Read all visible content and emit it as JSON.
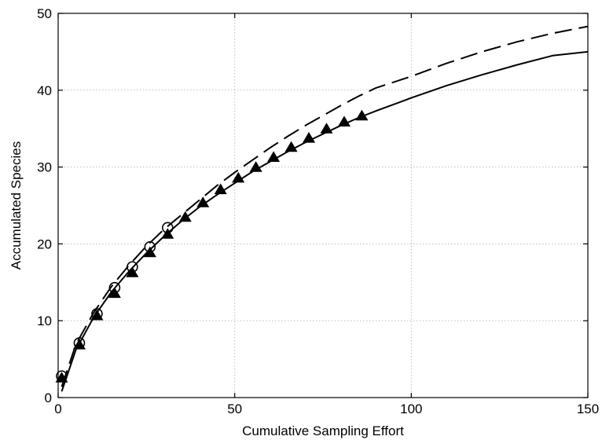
{
  "chart_data": {
    "type": "line",
    "title": "",
    "xlabel": "Cumulative Sampling Effort",
    "ylabel": "Accumulated Species",
    "xlim": [
      0,
      150
    ],
    "ylim": [
      0,
      50
    ],
    "x_ticks": [
      0,
      50,
      100,
      150
    ],
    "y_ticks": [
      0,
      10,
      20,
      30,
      40,
      50
    ],
    "x_tick_labels": [
      "0",
      "50",
      "100",
      "150"
    ],
    "y_tick_labels": [
      "0",
      "10",
      "20",
      "30",
      "40",
      "50"
    ],
    "grid": true,
    "legend": "none",
    "colors": {
      "lines": "#000000",
      "grid": "#bfbfbf",
      "axes": "#000000"
    },
    "series": [
      {
        "style": "solid-line",
        "x": [
          1,
          5,
          10,
          15,
          20,
          25,
          30,
          35,
          40,
          45,
          50,
          55,
          60,
          65,
          70,
          75,
          80,
          85,
          90,
          100,
          110,
          120,
          130,
          140,
          150
        ],
        "y": [
          0.8,
          6.2,
          10.4,
          13.7,
          16.4,
          18.8,
          21.0,
          23.0,
          24.8,
          26.4,
          27.9,
          29.4,
          30.7,
          32.0,
          33.2,
          34.3,
          35.4,
          36.4,
          37.3,
          39.0,
          40.6,
          42.0,
          43.3,
          44.5,
          45.0
        ]
      },
      {
        "style": "dashed-line",
        "x": [
          1,
          5,
          10,
          15,
          20,
          25,
          30,
          35,
          40,
          45,
          50,
          55,
          60,
          65,
          70,
          75,
          80,
          85,
          90,
          100,
          110,
          120,
          130,
          140,
          150
        ],
        "y": [
          1.4,
          6.9,
          11.0,
          14.4,
          17.2,
          19.7,
          21.9,
          23.8,
          25.7,
          27.6,
          29.3,
          30.9,
          32.5,
          34.0,
          35.4,
          36.7,
          38.0,
          39.2,
          40.3,
          41.8,
          43.5,
          45.0,
          46.3,
          47.4,
          48.3
        ]
      },
      {
        "style": "triangle-markers",
        "x": [
          1,
          6,
          11,
          16,
          21,
          26,
          31,
          36,
          41,
          46,
          51,
          56,
          61,
          66,
          71,
          76,
          81,
          86
        ],
        "y": [
          2.5,
          6.8,
          10.6,
          13.5,
          16.2,
          18.8,
          21.2,
          23.4,
          25.3,
          27.0,
          28.5,
          29.9,
          31.2,
          32.5,
          33.7,
          34.9,
          35.8,
          36.6
        ]
      },
      {
        "style": "circle-markers",
        "x": [
          1,
          6,
          11,
          16,
          21,
          26,
          31
        ],
        "y": [
          2.8,
          7.1,
          10.9,
          14.3,
          17.0,
          19.6,
          22.1
        ]
      }
    ]
  }
}
